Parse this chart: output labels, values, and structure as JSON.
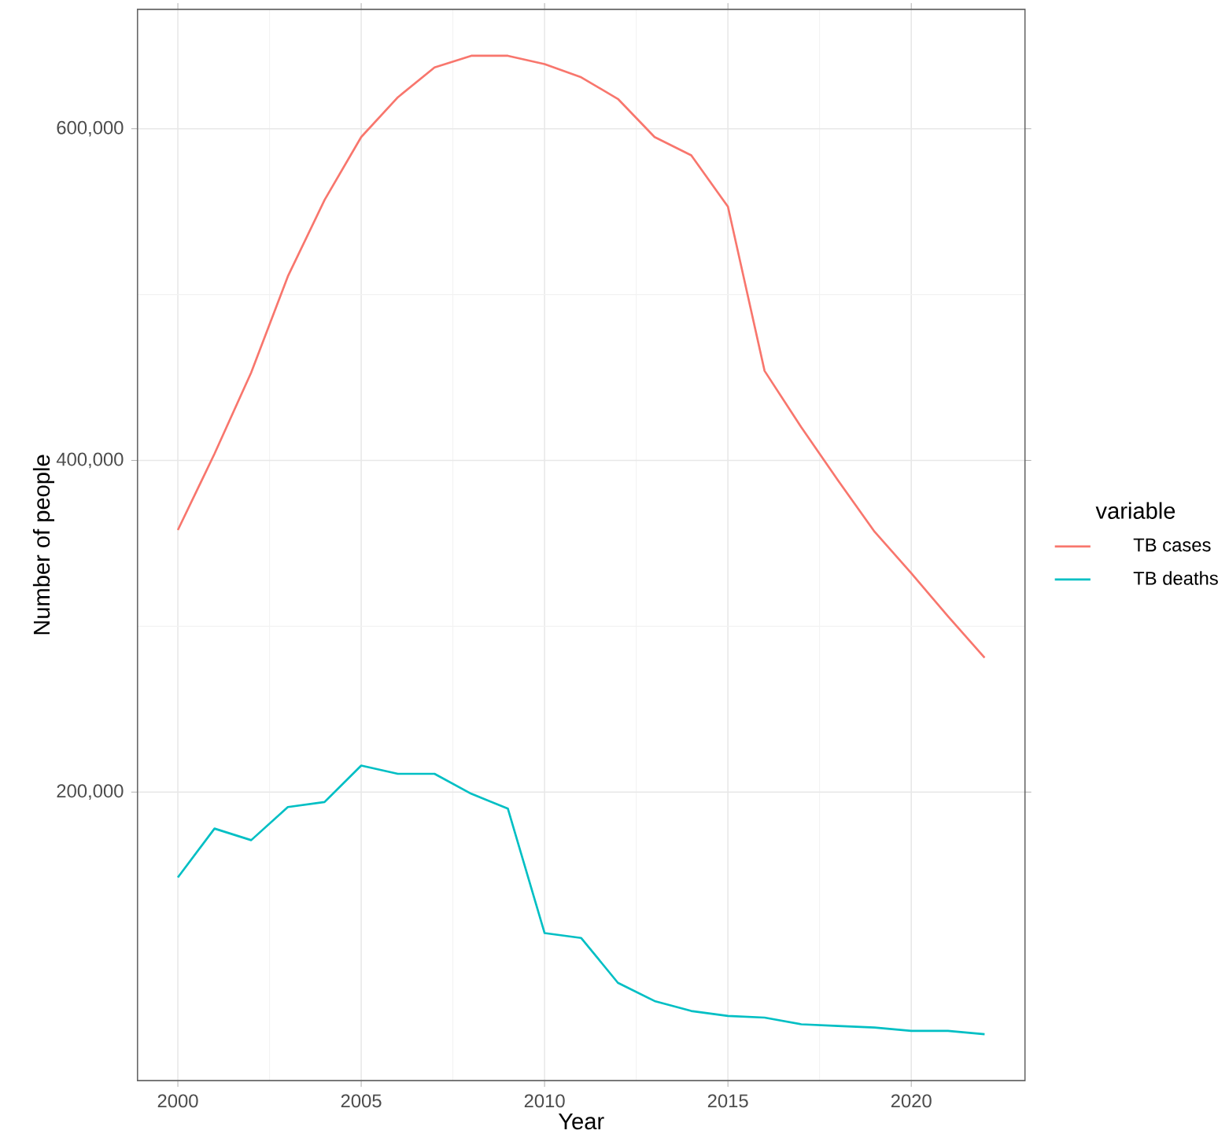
{
  "chart_data": {
    "type": "line",
    "xlabel": "Year",
    "ylabel": "Number of people",
    "legend_title": "variable",
    "legend": "right",
    "grid": true,
    "x": [
      2000,
      2001,
      2002,
      2003,
      2004,
      2005,
      2006,
      2007,
      2008,
      2009,
      2010,
      2011,
      2012,
      2013,
      2014,
      2015,
      2016,
      2017,
      2018,
      2019,
      2020,
      2021,
      2022
    ],
    "series": [
      {
        "name": "TB cases",
        "color": "#f8766d",
        "values": [
          358000,
          404000,
          453000,
          511000,
          557000,
          595000,
          619000,
          637000,
          644000,
          644000,
          639000,
          631000,
          618000,
          595000,
          584000,
          553000,
          454000,
          420000,
          388000,
          357000,
          332000,
          306000,
          281000
        ]
      },
      {
        "name": "TB deaths",
        "color": "#00bfc4",
        "values": [
          148500,
          178000,
          171000,
          191000,
          194000,
          216000,
          211000,
          211000,
          199000,
          190000,
          115000,
          112000,
          85000,
          74000,
          68000,
          65000,
          64000,
          60000,
          59000,
          58000,
          56000,
          56000,
          54000
        ]
      }
    ],
    "xlim": [
      1998.9,
      2023.1
    ],
    "ylim": [
      26000,
      672000
    ],
    "xticks": [
      2000,
      2005,
      2010,
      2015,
      2020
    ],
    "yticks": [
      {
        "value": 200000,
        "label": "200,000"
      },
      {
        "value": 400000,
        "label": "400,000"
      },
      {
        "value": 600000,
        "label": "600,000"
      }
    ]
  }
}
